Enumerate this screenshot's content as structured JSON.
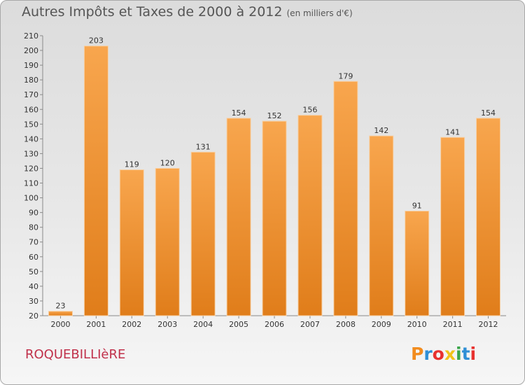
{
  "header": {
    "title": "Autres Impôts et Taxes de 2000 à 2012",
    "unit": "(en milliers d'€)"
  },
  "footer": {
    "commune": "ROQUEBILLIèRE",
    "logo_letters": [
      {
        "char": "P",
        "color": "#f28c1e"
      },
      {
        "char": "r",
        "color": "#2f8fd6"
      },
      {
        "char": "o",
        "color": "#e8312f"
      },
      {
        "char": "x",
        "color": "#f2c21a"
      },
      {
        "char": "i",
        "color": "#3aa54a"
      },
      {
        "char": "t",
        "color": "#2f8fd6"
      },
      {
        "char": "i",
        "color": "#e8312f"
      }
    ]
  },
  "colors": {
    "bar_light": "#f8a64e",
    "bar_dark": "#e07d1a",
    "bar_stroke": "#f7d0a4",
    "axis": "#8a8a8a",
    "grid": "#cfcfcf",
    "text": "#333333"
  },
  "chart_data": {
    "type": "bar",
    "title": "Autres Impôts et Taxes de 2000 à 2012",
    "subtitle": "(en milliers d'€)",
    "xlabel": "",
    "ylabel": "",
    "categories": [
      "2000",
      "2001",
      "2002",
      "2003",
      "2004",
      "2005",
      "2006",
      "2007",
      "2008",
      "2009",
      "2010",
      "2011",
      "2012"
    ],
    "values": [
      23,
      203,
      119,
      120,
      131,
      154,
      152,
      156,
      179,
      142,
      91,
      141,
      154
    ],
    "ylim": [
      20,
      210
    ],
    "yticks": [
      20,
      30,
      40,
      50,
      60,
      70,
      80,
      90,
      100,
      110,
      120,
      130,
      140,
      150,
      160,
      170,
      180,
      190,
      200,
      210
    ],
    "data_labels": true,
    "grid": false,
    "legend": "none"
  }
}
